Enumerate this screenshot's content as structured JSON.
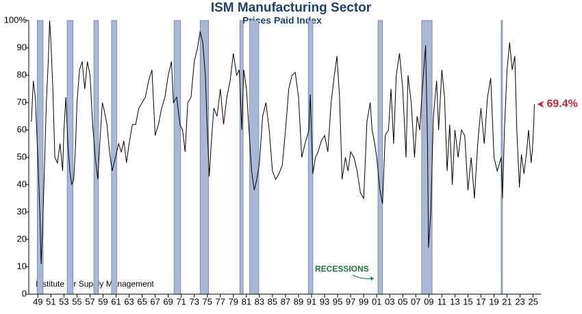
{
  "chart_data": {
    "type": "line",
    "title": "ISM Manufacturing Sector",
    "subtitle": "Prices Paid Index",
    "source": "Institute for Supply Management",
    "recession_label": "RECESSIONS",
    "color": "#000000",
    "recession_color": "#aab8d6",
    "label_color": "#c0283a",
    "xlim": [
      1947.6,
      2026.2
    ],
    "ylim": [
      0,
      100
    ],
    "yticks": [
      0,
      10,
      20,
      30,
      40,
      50,
      60,
      70,
      80,
      90,
      {
        "value": 100,
        "label": "100%"
      }
    ],
    "xticks": [
      {
        "value": 1949,
        "label": "49"
      },
      {
        "value": 1951,
        "label": "51"
      },
      {
        "value": 1953,
        "label": "53"
      },
      {
        "value": 1955,
        "label": "55"
      },
      {
        "value": 1957,
        "label": "57"
      },
      {
        "value": 1959,
        "label": "59"
      },
      {
        "value": 1961,
        "label": "61"
      },
      {
        "value": 1963,
        "label": "63"
      },
      {
        "value": 1965,
        "label": "65"
      },
      {
        "value": 1967,
        "label": "67"
      },
      {
        "value": 1969,
        "label": "69"
      },
      {
        "value": 1971,
        "label": "71"
      },
      {
        "value": 1973,
        "label": "73"
      },
      {
        "value": 1975,
        "label": "75"
      },
      {
        "value": 1977,
        "label": "77"
      },
      {
        "value": 1979,
        "label": "79"
      },
      {
        "value": 1981,
        "label": "81"
      },
      {
        "value": 1983,
        "label": "83"
      },
      {
        "value": 1985,
        "label": "85"
      },
      {
        "value": 1987,
        "label": "87"
      },
      {
        "value": 1989,
        "label": "89"
      },
      {
        "value": 1991,
        "label": "91"
      },
      {
        "value": 1993,
        "label": "93"
      },
      {
        "value": 1995,
        "label": "95"
      },
      {
        "value": 1997,
        "label": "97"
      },
      {
        "value": 1999,
        "label": "99"
      },
      {
        "value": 2001,
        "label": "01"
      },
      {
        "value": 2003,
        "label": "03"
      },
      {
        "value": 2005,
        "label": "05"
      },
      {
        "value": 2007,
        "label": "07"
      },
      {
        "value": 2009,
        "label": "09"
      },
      {
        "value": 2011,
        "label": "11"
      },
      {
        "value": 2013,
        "label": "13"
      },
      {
        "value": 2015,
        "label": "15"
      },
      {
        "value": 2017,
        "label": "17"
      },
      {
        "value": 2019,
        "label": "19"
      },
      {
        "value": 2021,
        "label": "21"
      },
      {
        "value": 2023,
        "label": "23"
      },
      {
        "value": 2025,
        "label": "25"
      }
    ],
    "recessions": [
      [
        1948.9,
        1949.8
      ],
      [
        1953.5,
        1954.4
      ],
      [
        1957.6,
        1958.3
      ],
      [
        1960.3,
        1961.1
      ],
      [
        1969.9,
        1970.9
      ],
      [
        1973.9,
        1975.2
      ],
      [
        1980.0,
        1980.5
      ],
      [
        1981.5,
        1982.9
      ],
      [
        1990.5,
        1991.2
      ],
      [
        2001.2,
        2001.9
      ],
      [
        2007.9,
        2009.5
      ],
      [
        2020.1,
        2020.3
      ]
    ],
    "x": [
      1948.0,
      1948.3,
      1948.6,
      1949.0,
      1949.3,
      1949.5,
      1949.7,
      1950.0,
      1950.3,
      1950.6,
      1950.8,
      1951.0,
      1951.3,
      1951.6,
      1952.0,
      1952.4,
      1952.8,
      1953.0,
      1953.3,
      1953.6,
      1953.9,
      1954.2,
      1954.5,
      1954.8,
      1955.0,
      1955.4,
      1955.8,
      1956.2,
      1956.6,
      1957.0,
      1957.4,
      1957.8,
      1958.2,
      1958.5,
      1958.9,
      1959.2,
      1959.6,
      1960.0,
      1960.4,
      1960.9,
      1961.4,
      1961.8,
      1962.2,
      1962.6,
      1963.0,
      1963.5,
      1964.0,
      1964.5,
      1965.0,
      1965.5,
      1966.0,
      1966.5,
      1967.0,
      1967.5,
      1968.0,
      1968.5,
      1969.0,
      1969.5,
      1969.8,
      1970.3,
      1970.8,
      1971.2,
      1971.6,
      1972.0,
      1972.5,
      1973.0,
      1973.5,
      1973.9,
      1974.3,
      1974.7,
      1975.0,
      1975.3,
      1975.6,
      1976.0,
      1976.5,
      1977.0,
      1977.5,
      1978.0,
      1978.5,
      1979.0,
      1979.5,
      1979.9,
      1980.3,
      1980.6,
      1981.0,
      1981.4,
      1981.8,
      1982.2,
      1982.6,
      1983.0,
      1983.5,
      1984.0,
      1984.5,
      1985.0,
      1985.5,
      1986.0,
      1986.5,
      1987.0,
      1987.5,
      1988.0,
      1988.5,
      1989.0,
      1989.5,
      1990.0,
      1990.6,
      1990.8,
      1991.2,
      1991.6,
      1992.0,
      1992.5,
      1993.0,
      1993.5,
      1994.0,
      1994.5,
      1994.9,
      1995.3,
      1995.7,
      1996.2,
      1996.6,
      1997.0,
      1997.5,
      1998.0,
      1998.5,
      1999.0,
      1999.5,
      2000.0,
      2000.3,
      2000.7,
      2001.0,
      2001.5,
      2001.9,
      2002.3,
      2002.8,
      2003.2,
      2003.6,
      2004.0,
      2004.5,
      2005.0,
      2005.5,
      2005.8,
      2006.3,
      2006.8,
      2007.2,
      2007.6,
      2008.0,
      2008.5,
      2008.8,
      2008.95,
      2009.3,
      2009.7,
      2010.2,
      2010.5,
      2011.0,
      2011.4,
      2011.8,
      2012.2,
      2012.6,
      2013.0,
      2013.5,
      2014.0,
      2014.5,
      2015.0,
      2015.5,
      2016.0,
      2016.5,
      2017.0,
      2017.5,
      2018.0,
      2018.5,
      2019.0,
      2019.5,
      2020.1,
      2020.3,
      2020.6,
      2021.0,
      2021.4,
      2021.8,
      2022.2,
      2022.5,
      2022.9,
      2023.2,
      2023.6,
      2024.0,
      2024.3,
      2024.7,
      2024.9,
      2025.1
    ],
    "values": [
      63,
      78,
      72,
      50,
      30,
      11,
      22,
      45,
      70,
      85,
      100,
      92,
      75,
      50,
      48,
      55,
      45,
      60,
      72,
      55,
      45,
      40,
      42,
      55,
      70,
      82,
      85,
      75,
      85,
      80,
      62,
      50,
      42,
      55,
      70,
      67,
      62,
      52,
      45,
      50,
      55,
      52,
      56,
      48,
      55,
      62,
      62,
      68,
      70,
      72,
      78,
      82,
      58,
      62,
      68,
      72,
      80,
      85,
      70,
      72,
      62,
      60,
      52,
      70,
      72,
      85,
      90,
      96,
      92,
      80,
      60,
      43,
      55,
      68,
      65,
      75,
      62,
      72,
      78,
      88,
      80,
      82,
      60,
      82,
      75,
      60,
      45,
      38,
      42,
      48,
      65,
      70,
      60,
      45,
      42,
      44,
      47,
      60,
      75,
      80,
      81,
      72,
      50,
      55,
      60,
      73,
      44,
      50,
      52,
      56,
      58,
      52,
      70,
      80,
      87,
      72,
      42,
      50,
      45,
      52,
      50,
      45,
      37,
      35,
      63,
      70,
      60,
      55,
      50,
      38,
      33,
      58,
      60,
      75,
      55,
      80,
      88,
      75,
      50,
      80,
      70,
      50,
      65,
      60,
      75,
      91,
      55,
      17,
      30,
      65,
      78,
      60,
      82,
      72,
      45,
      62,
      40,
      60,
      50,
      60,
      58,
      38,
      50,
      35,
      55,
      68,
      55,
      72,
      79,
      50,
      45,
      50,
      35,
      60,
      82,
      92,
      82,
      87,
      60,
      39,
      51,
      44,
      52,
      60,
      48,
      53,
      62
    ],
    "latest": {
      "x": 2025.2,
      "value": 69.4,
      "label": "69.4%"
    }
  }
}
